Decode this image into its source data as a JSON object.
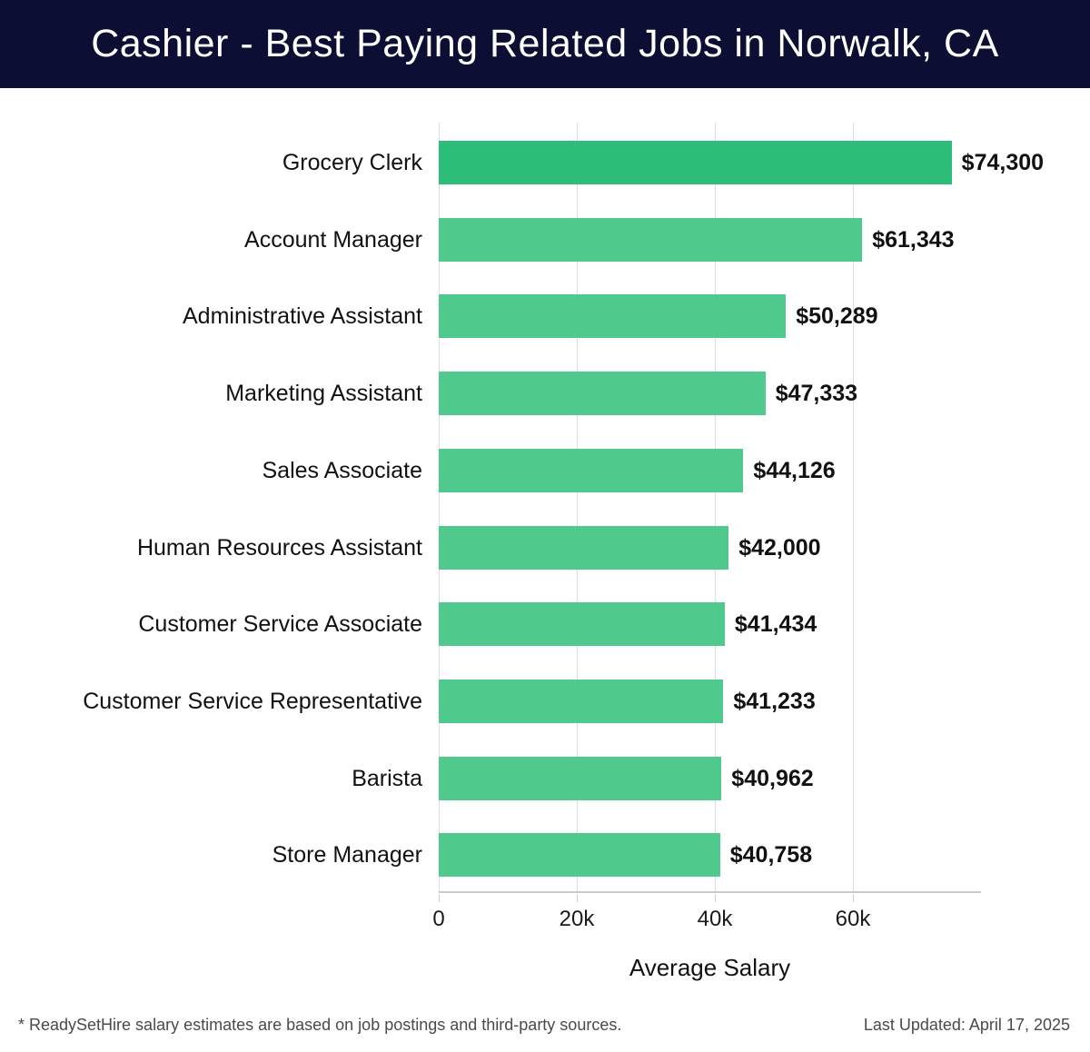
{
  "header": {
    "title": "Cashier - Best Paying Related Jobs in Norwalk, CA",
    "bg_color": "#0d0e33",
    "text_color": "#ffffff"
  },
  "chart_data": {
    "type": "bar",
    "orientation": "horizontal",
    "title": "Cashier - Best Paying Related Jobs in Norwalk, CA",
    "categories": [
      "Grocery Clerk",
      "Account Manager",
      "Administrative Assistant",
      "Marketing Assistant",
      "Sales Associate",
      "Human Resources Assistant",
      "Customer Service Associate",
      "Customer Service Representative",
      "Barista",
      "Store Manager"
    ],
    "values": [
      74300,
      61343,
      50289,
      47333,
      44126,
      42000,
      41434,
      41233,
      40962,
      40758
    ],
    "value_labels": [
      "$74,300",
      "$61,343",
      "$50,289",
      "$47,333",
      "$44,126",
      "$42,000",
      "$41,434",
      "$41,233",
      "$40,962",
      "$40,758"
    ],
    "xlabel": "Average Salary",
    "xlim": [
      0,
      78553
    ],
    "x_ticks": [
      {
        "value": 0,
        "label": "0"
      },
      {
        "value": 20000,
        "label": "20k"
      },
      {
        "value": 40000,
        "label": "40k"
      },
      {
        "value": 60000,
        "label": "60k"
      }
    ],
    "grid": true,
    "legend": false,
    "gridline_color": "#dddddd",
    "bar_color_first": "#2cbd78",
    "bar_color": "#4fc98c"
  },
  "footer": {
    "note": "* ReadySetHire salary estimates are based on job postings and third-party sources.",
    "last_updated": "Last Updated: April 17, 2025"
  }
}
